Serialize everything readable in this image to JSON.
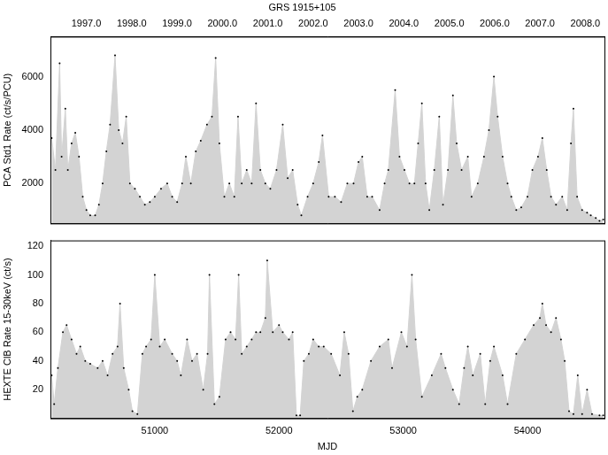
{
  "chart_data": [
    {
      "type": "line",
      "title": "GRS 1915+105",
      "ylabel": "PCA Std1 Rate (ct/s/PCU)",
      "xlim": [
        50160,
        54620
      ],
      "ylim": [
        500,
        7500
      ],
      "yticks": [
        2000,
        4000,
        6000
      ],
      "x2lim": [
        50160,
        54620
      ],
      "x2ticks": [
        {
          "value": 50449,
          "label": "1997.0"
        },
        {
          "value": 50814,
          "label": "1998.0"
        },
        {
          "value": 51179,
          "label": "1999.0"
        },
        {
          "value": 51544,
          "label": "2000.0"
        },
        {
          "value": 51910,
          "label": "2001.0"
        },
        {
          "value": 52275,
          "label": "2002.0"
        },
        {
          "value": 52640,
          "label": "2003.0"
        },
        {
          "value": 53005,
          "label": "2004.0"
        },
        {
          "value": 53371,
          "label": "2005.0"
        },
        {
          "value": 53736,
          "label": "2006.0"
        },
        {
          "value": 54101,
          "label": "2007.0"
        },
        {
          "value": 54466,
          "label": "2008.0"
        }
      ],
      "grid": false,
      "color": "#d3d3d3",
      "marker": "dot",
      "x": [
        50170,
        50200,
        50234,
        50250,
        50280,
        50300,
        50330,
        50360,
        50390,
        50420,
        50450,
        50480,
        50520,
        50550,
        50580,
        50610,
        50640,
        50680,
        50710,
        50740,
        50770,
        50800,
        50840,
        50880,
        50920,
        50960,
        51000,
        51050,
        51100,
        51140,
        51180,
        51220,
        51250,
        51290,
        51330,
        51370,
        51420,
        51460,
        51490,
        51520,
        51560,
        51600,
        51640,
        51670,
        51700,
        51740,
        51780,
        51815,
        51850,
        51890,
        51930,
        51980,
        52030,
        52070,
        52110,
        52150,
        52180,
        52230,
        52275,
        52320,
        52350,
        52400,
        52450,
        52500,
        52550,
        52600,
        52640,
        52670,
        52710,
        52750,
        52810,
        52850,
        52880,
        52935,
        52970,
        53010,
        53050,
        53090,
        53120,
        53150,
        53180,
        53210,
        53250,
        53290,
        53320,
        53360,
        53400,
        53430,
        53470,
        53520,
        53550,
        53600,
        53650,
        53690,
        53730,
        53760,
        53800,
        53840,
        53870,
        53910,
        53950,
        54000,
        54040,
        54085,
        54120,
        54155,
        54190,
        54230,
        54280,
        54320,
        54350,
        54370,
        54400,
        54440,
        54480,
        54510,
        54550,
        54580,
        54610
      ],
      "values": [
        3700,
        2500,
        6500,
        3000,
        4800,
        2500,
        3500,
        3900,
        3000,
        1500,
        1000,
        800,
        800,
        1200,
        2000,
        3200,
        4200,
        6800,
        4000,
        3500,
        4500,
        2000,
        1800,
        1500,
        1200,
        1300,
        1500,
        1800,
        2000,
        1500,
        1300,
        2000,
        3000,
        2000,
        3200,
        3600,
        4200,
        4500,
        6700,
        3500,
        1500,
        2000,
        1500,
        4500,
        2000,
        2500,
        2000,
        5000,
        2500,
        2000,
        1800,
        2500,
        4200,
        2200,
        2500,
        1200,
        800,
        1500,
        2000,
        2800,
        3800,
        1500,
        1500,
        1300,
        2000,
        2000,
        2800,
        3000,
        1500,
        1500,
        1000,
        2000,
        2500,
        5500,
        3000,
        2500,
        2000,
        2000,
        3500,
        5000,
        2000,
        1000,
        2500,
        4500,
        1200,
        2500,
        5300,
        3500,
        2500,
        3000,
        1500,
        2000,
        3000,
        4000,
        6000,
        4500,
        3000,
        2000,
        1500,
        1000,
        1100,
        1500,
        2500,
        3000,
        3700,
        2500,
        1500,
        1200,
        1500,
        1000,
        3500,
        4800,
        1500,
        1000,
        900,
        800,
        700,
        600,
        650
      ]
    },
    {
      "type": "line",
      "xlabel": "MJD",
      "ylabel": "HEXTE ClB Rate 15-30keV (ct/s)",
      "xlim": [
        50160,
        54620
      ],
      "xticks": [
        51000,
        52000,
        53000,
        54000
      ],
      "ylim": [
        0,
        124
      ],
      "yticks": [
        20,
        40,
        60,
        80,
        100,
        120
      ],
      "grid": false,
      "color": "#d3d3d3",
      "marker": "dot",
      "x": [
        50170,
        50190,
        50220,
        50260,
        50290,
        50330,
        50370,
        50400,
        50440,
        50480,
        50540,
        50580,
        50620,
        50660,
        50700,
        50720,
        50750,
        50790,
        50820,
        50860,
        50900,
        50930,
        50970,
        51000,
        51040,
        51080,
        51140,
        51180,
        51210,
        51260,
        51300,
        51340,
        51390,
        51425,
        51440,
        51480,
        51520,
        51570,
        51610,
        51650,
        51675,
        51700,
        51740,
        51780,
        51815,
        51850,
        51890,
        51905,
        51950,
        52000,
        52030,
        52080,
        52110,
        52140,
        52170,
        52200,
        52240,
        52275,
        52320,
        52360,
        52420,
        52490,
        52525,
        52560,
        52595,
        52630,
        52670,
        52740,
        52810,
        52880,
        52910,
        52985,
        53030,
        53070,
        53100,
        53150,
        53230,
        53305,
        53340,
        53400,
        53450,
        53490,
        53520,
        53560,
        53620,
        53660,
        53700,
        53730,
        53800,
        53840,
        53910,
        53980,
        54050,
        54100,
        54120,
        54150,
        54190,
        54230,
        54270,
        54300,
        54335,
        54370,
        54405,
        54440,
        54480,
        54520,
        54580,
        54610
      ],
      "values": [
        30,
        10,
        35,
        60,
        65,
        55,
        45,
        50,
        40,
        38,
        35,
        40,
        30,
        45,
        50,
        80,
        35,
        20,
        5,
        3,
        45,
        50,
        55,
        100,
        50,
        55,
        45,
        40,
        30,
        55,
        40,
        45,
        20,
        45,
        100,
        10,
        15,
        55,
        60,
        55,
        100,
        45,
        50,
        55,
        60,
        60,
        70,
        110,
        60,
        65,
        60,
        55,
        60,
        2,
        2,
        40,
        45,
        55,
        50,
        50,
        45,
        30,
        60,
        45,
        5,
        15,
        20,
        40,
        50,
        55,
        35,
        60,
        50,
        100,
        55,
        15,
        30,
        45,
        35,
        20,
        10,
        35,
        50,
        30,
        45,
        10,
        40,
        50,
        30,
        10,
        45,
        55,
        65,
        70,
        80,
        65,
        60,
        70,
        55,
        40,
        5,
        3,
        30,
        3,
        20,
        3,
        2,
        2
      ]
    }
  ]
}
